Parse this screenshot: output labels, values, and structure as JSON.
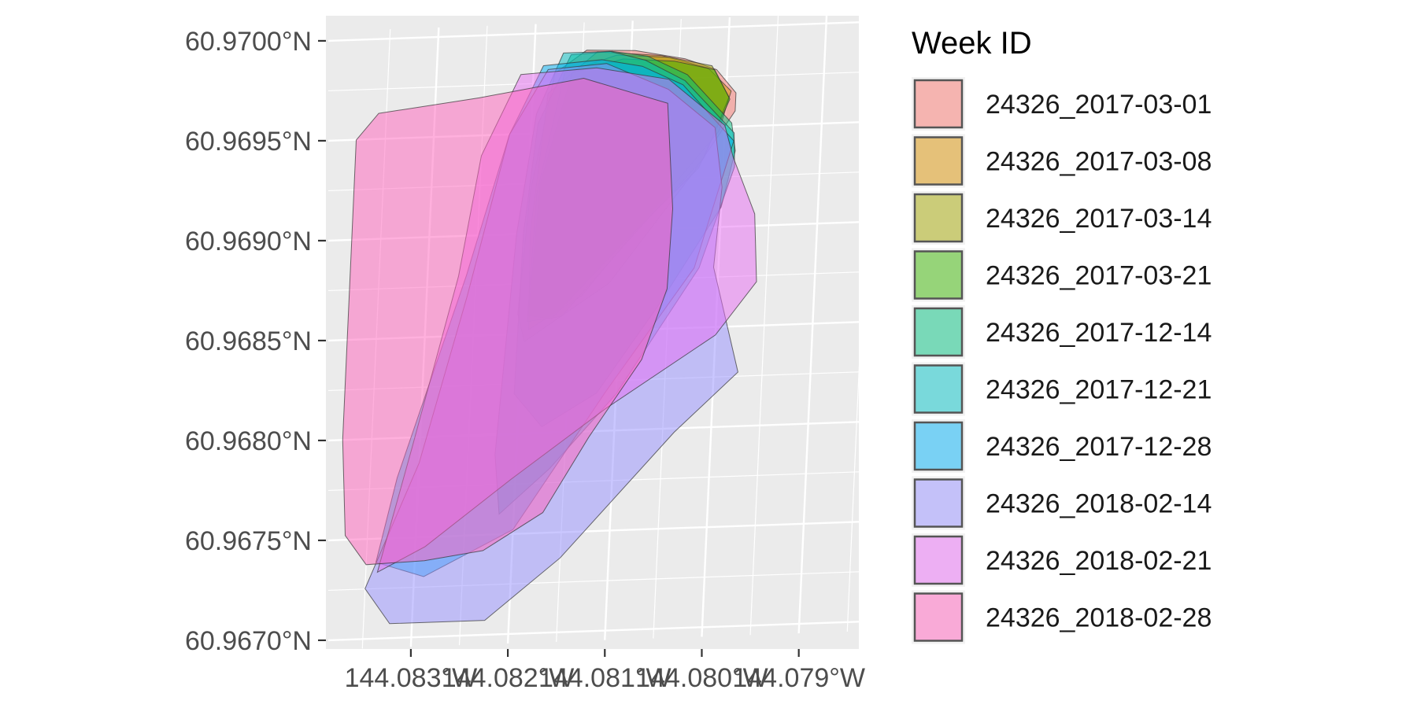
{
  "chart_data": {
    "type": "map",
    "title": "",
    "xlabel": "",
    "ylabel": "",
    "grid": true,
    "legend_position": "right",
    "legend": {
      "title": "Week ID"
    },
    "x_ticks": [
      {
        "value": -144.083,
        "label": "144.083°W"
      },
      {
        "value": -144.082,
        "label": "144.082°W"
      },
      {
        "value": -144.081,
        "label": "144.081°W"
      },
      {
        "value": -144.08,
        "label": "144.080°W"
      },
      {
        "value": -144.079,
        "label": "144.079°W"
      }
    ],
    "y_ticks": [
      {
        "value": 60.97,
        "label": "60.9700°N"
      },
      {
        "value": 60.9695,
        "label": "60.9695°N"
      },
      {
        "value": 60.969,
        "label": "60.9690°N"
      },
      {
        "value": 60.9685,
        "label": "60.9685°N"
      },
      {
        "value": 60.968,
        "label": "60.9680°N"
      },
      {
        "value": 60.9675,
        "label": "60.9675°N"
      },
      {
        "value": 60.967,
        "label": "60.9670°N"
      }
    ],
    "xlim": [
      -144.084,
      -144.0785
    ],
    "ylim": [
      60.96695,
      60.97005
    ],
    "series": [
      {
        "name": "24326_2017-03-01",
        "color": "#F8766D",
        "polygon": [
          [
            -144.08146,
            60.96991
          ],
          [
            -144.08096,
            60.9699
          ],
          [
            -144.08044,
            60.96985
          ],
          [
            -144.08011,
            60.96979
          ],
          [
            -144.0799,
            60.96967
          ],
          [
            -144.0799,
            60.96958
          ],
          [
            -144.0803,
            60.96928
          ],
          [
            -144.08112,
            60.96874
          ],
          [
            -144.08197,
            60.96846
          ],
          [
            -144.08205,
            60.9686
          ],
          [
            -144.08198,
            60.9692
          ],
          [
            -144.08178,
            60.9698
          ]
        ]
      },
      {
        "name": "24326_2017-03-08",
        "color": "#D89000",
        "polygon": [
          [
            -144.08135,
            60.9699
          ],
          [
            -144.08068,
            60.96987
          ],
          [
            -144.0802,
            60.9698
          ],
          [
            -144.07995,
            60.96968
          ],
          [
            -144.08006,
            60.96948
          ],
          [
            -144.0806,
            60.96916
          ],
          [
            -144.0814,
            60.96868
          ],
          [
            -144.08193,
            60.96852
          ],
          [
            -144.08196,
            60.969
          ],
          [
            -144.08184,
            60.9697
          ]
        ]
      },
      {
        "name": "24326_2017-03-14",
        "color": "#A3A500",
        "polygon": [
          [
            -144.08115,
            60.96988
          ],
          [
            -144.0806,
            60.96986
          ],
          [
            -144.08016,
            60.96981
          ],
          [
            -144.07997,
            60.96965
          ],
          [
            -144.0802,
            60.96935
          ],
          [
            -144.08085,
            60.969
          ],
          [
            -144.0816,
            60.96858
          ],
          [
            -144.08195,
            60.96856
          ],
          [
            -144.08191,
            60.9692
          ],
          [
            -144.08168,
            60.9698
          ]
        ]
      },
      {
        "name": "24326_2017-03-21",
        "color": "#39B600",
        "polygon": [
          [
            -144.08108,
            60.96986
          ],
          [
            -144.08055,
            60.96984
          ],
          [
            -144.08013,
            60.96979
          ],
          [
            -144.07996,
            60.96964
          ],
          [
            -144.08025,
            60.9693
          ],
          [
            -144.08095,
            60.96896
          ],
          [
            -144.0817,
            60.96857
          ],
          [
            -144.08194,
            60.96859
          ],
          [
            -144.08188,
            60.96925
          ],
          [
            -144.0816,
            60.9698
          ]
        ]
      },
      {
        "name": "24326_2017-12-14",
        "color": "#00BF7D",
        "polygon": [
          [
            -144.08162,
            60.96989
          ],
          [
            -144.0812,
            60.9699
          ],
          [
            -144.08083,
            60.96987
          ],
          [
            -144.08041,
            60.96977
          ],
          [
            -144.07993,
            60.96952
          ],
          [
            -144.07988,
            60.96938
          ],
          [
            -144.08,
            60.9691
          ],
          [
            -144.0806,
            60.96862
          ],
          [
            -144.0812,
            60.96819
          ],
          [
            -144.08175,
            60.96803
          ],
          [
            -144.08205,
            60.9682
          ],
          [
            -144.08203,
            60.969
          ],
          [
            -144.08193,
            60.96955
          ]
        ]
      },
      {
        "name": "24326_2017-12-21",
        "color": "#00BFC4",
        "polygon": [
          [
            -144.0817,
            60.9699
          ],
          [
            -144.08122,
            60.9699
          ],
          [
            -144.08085,
            60.96985
          ],
          [
            -144.08043,
            60.96974
          ],
          [
            -144.0799,
            60.96947
          ],
          [
            -144.07988,
            60.9693
          ],
          [
            -144.0802,
            60.9688
          ],
          [
            -144.081,
            60.96818
          ],
          [
            -144.08165,
            60.96782
          ],
          [
            -144.08215,
            60.9676
          ],
          [
            -144.08222,
            60.9679
          ],
          [
            -144.0821,
            60.969
          ],
          [
            -144.08195,
            60.9696
          ]
        ]
      },
      {
        "name": "24326_2017-12-28",
        "color": "#00B0F6",
        "polygon": [
          [
            -144.0819,
            60.96984
          ],
          [
            -144.0813,
            60.96986
          ],
          [
            -144.08088,
            60.96982
          ],
          [
            -144.08045,
            60.96972
          ],
          [
            -144.0799,
            60.96943
          ],
          [
            -144.08025,
            60.9688
          ],
          [
            -144.0811,
            60.9682
          ],
          [
            -144.082,
            60.96752
          ],
          [
            -144.0829,
            60.9673
          ],
          [
            -144.0834,
            60.96738
          ],
          [
            -144.08322,
            60.9678
          ],
          [
            -144.0826,
            60.9688
          ],
          [
            -144.08222,
            60.9695
          ]
        ]
      },
      {
        "name": "24326_2018-02-14",
        "color": "#9590FF",
        "polygon": [
          [
            -144.08185,
            60.96982
          ],
          [
            -144.08125,
            60.96984
          ],
          [
            -144.0806,
            60.9697
          ],
          [
            -144.0801,
            60.9695
          ],
          [
            -144.08,
            60.9692
          ],
          [
            -144.08005,
            60.9688
          ],
          [
            -144.07975,
            60.96827
          ],
          [
            -144.08038,
            60.96798
          ],
          [
            -144.0815,
            60.96737
          ],
          [
            -144.08225,
            60.96707
          ],
          [
            -144.08323,
            60.96707
          ],
          [
            -144.0835,
            60.96725
          ],
          [
            -144.083,
            60.96787
          ],
          [
            -144.08258,
            60.9687
          ],
          [
            -144.08222,
            60.9695
          ]
        ]
      },
      {
        "name": "24326_2018-02-21",
        "color": "#E76BF3",
        "polygon": [
          [
            -144.08213,
            60.9698
          ],
          [
            -144.08135,
            60.96982
          ],
          [
            -144.0806,
            60.96975
          ],
          [
            -144.08,
            60.96951
          ],
          [
            -144.0799,
            60.96935
          ],
          [
            -144.07965,
            60.96906
          ],
          [
            -144.0796,
            60.96872
          ],
          [
            -144.08,
            60.96846
          ],
          [
            -144.0811,
            60.96811
          ],
          [
            -144.08205,
            60.96777
          ],
          [
            -144.0829,
            60.96745
          ],
          [
            -144.08338,
            60.96733
          ],
          [
            -144.08308,
            60.96795
          ],
          [
            -144.08268,
            60.9688
          ],
          [
            -144.0825,
            60.9694
          ]
        ]
      },
      {
        "name": "24326_2018-02-28",
        "color": "#FF62BC",
        "polygon": [
          [
            -144.08358,
            60.96963
          ],
          [
            -144.08255,
            60.96969
          ],
          [
            -144.08148,
            60.96977
          ],
          [
            -144.0806,
            60.96963
          ],
          [
            -144.0805,
            60.9691
          ],
          [
            -144.08052,
            60.9687
          ],
          [
            -144.08075,
            60.96835
          ],
          [
            -144.08126,
            60.96797
          ],
          [
            -144.0817,
            60.9676
          ],
          [
            -144.0823,
            60.96742
          ],
          [
            -144.0829,
            60.96738
          ],
          [
            -144.0835,
            60.96737
          ],
          [
            -144.08373,
            60.96752
          ],
          [
            -144.0838,
            60.968
          ],
          [
            -144.0838,
            60.969
          ],
          [
            -144.0838,
            60.9695
          ]
        ]
      }
    ]
  }
}
